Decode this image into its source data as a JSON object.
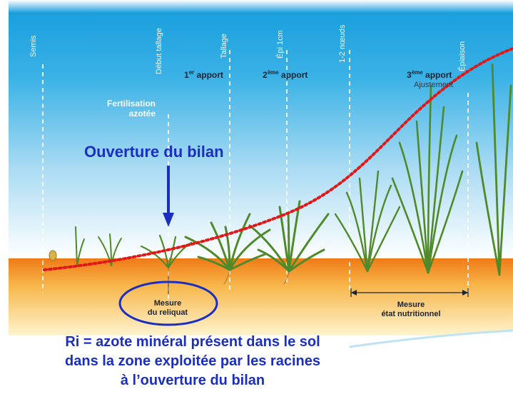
{
  "stages": [
    {
      "label": "Semis"
    },
    {
      "label": "Début tallage"
    },
    {
      "label": "Tallage"
    },
    {
      "label": "Épi 1cm"
    },
    {
      "label": "1-2 nœuds"
    },
    {
      "label": "Épiaison"
    }
  ],
  "apports": [
    {
      "num": "1",
      "sup": "er",
      "text": "apport"
    },
    {
      "num": "2",
      "sup": "ème",
      "text": "apport"
    },
    {
      "num": "3",
      "sup": "ème",
      "text": "apport"
    }
  ],
  "fertilisation": {
    "line1": "Fertilisation",
    "line2": "azotée"
  },
  "ajustement": "Ajustement",
  "ouverture": "Ouverture du bilan",
  "mesure_reliquat": {
    "line1": "Mesure",
    "line2": "du reliquat"
  },
  "mesure_etat": {
    "line1": "Mesure",
    "line2": "état nutritionnel"
  },
  "ri_text": [
    "Ri = azote minéral présent dans le sol",
    "dans la zone exploitée par les racines",
    "à l’ouverture du bilan"
  ],
  "colors": {
    "sky_top": "#1aa0de",
    "sky_bottom": "#ffffff",
    "soil_top": "#f0821e",
    "soil_bottom": "#fff3c8",
    "curve": "#e01818",
    "accent_blue": "#1a2fc0",
    "plant": "#4f8a2a"
  }
}
